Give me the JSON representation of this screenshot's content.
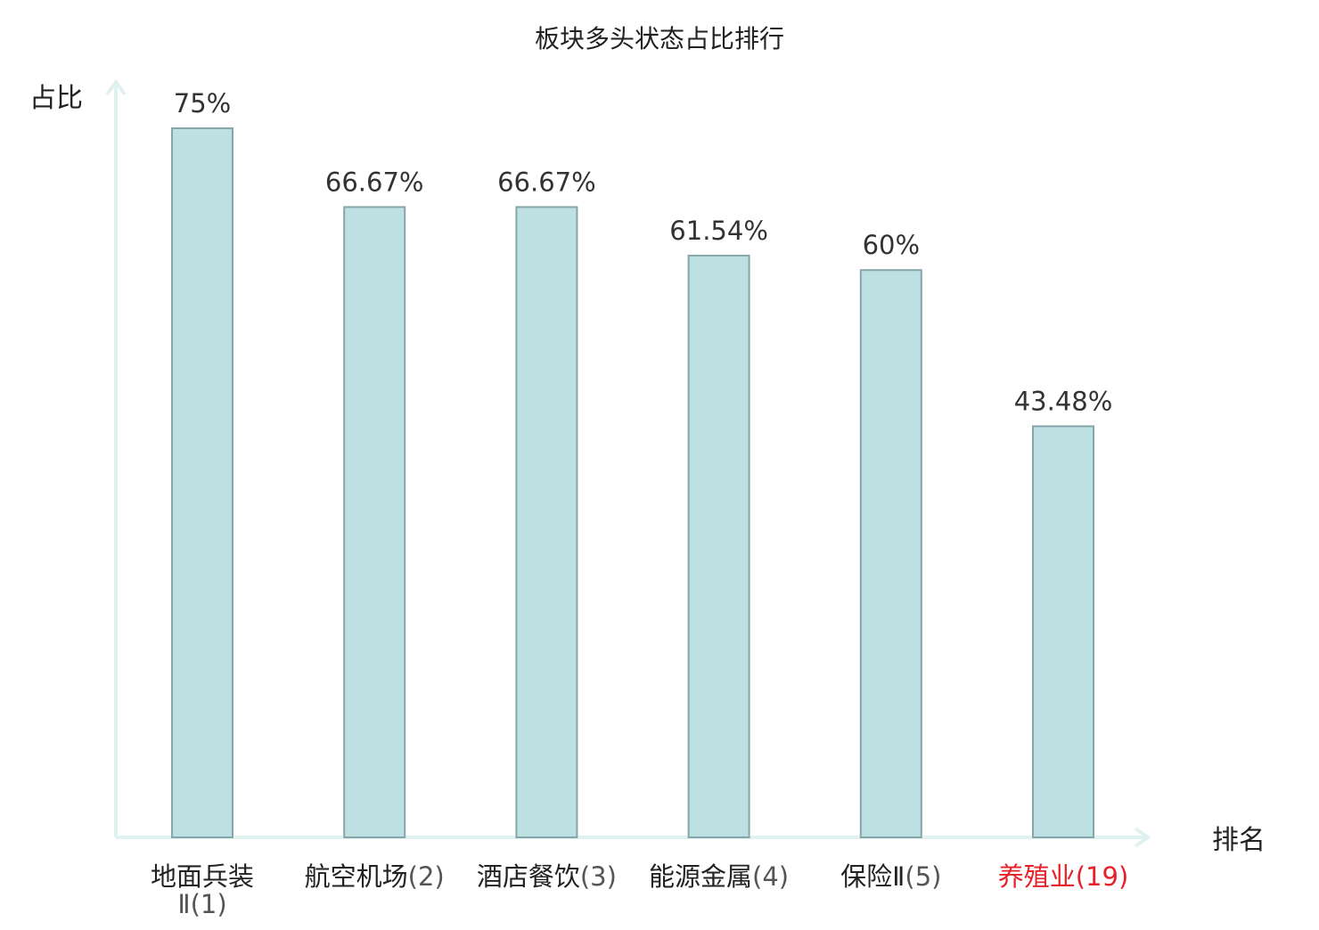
{
  "chart_data": {
    "type": "bar",
    "title": "板块多头状态占比排行",
    "ylabel": "占比",
    "xlabel": "排名",
    "categories": [
      {
        "name": "地面兵装Ⅱ",
        "rank": "(1)",
        "highlight": false
      },
      {
        "name": "航空机场",
        "rank": "(2)",
        "highlight": false
      },
      {
        "name": "酒店餐饮",
        "rank": "(3)",
        "highlight": false
      },
      {
        "name": "能源金属",
        "rank": "(4)",
        "highlight": false
      },
      {
        "name": "保险Ⅱ",
        "rank": "(5)",
        "highlight": false
      },
      {
        "name": "养殖业",
        "rank": "(19)",
        "highlight": true
      }
    ],
    "values": [
      75,
      66.67,
      66.67,
      61.54,
      60,
      43.48
    ],
    "value_labels": [
      "75%",
      "66.67%",
      "66.67%",
      "61.54%",
      "60%",
      "43.48%"
    ],
    "ylim": [
      0,
      75
    ],
    "grid": false,
    "legend": "none",
    "colors": {
      "bar_fill": "#bde0e2",
      "bar_stroke": "#86a6a9",
      "axis": "#e0f2f0",
      "label_text": "#222222",
      "value_text": "#333333",
      "rank_text": "#555555",
      "highlight_text": "#e8202a"
    }
  }
}
